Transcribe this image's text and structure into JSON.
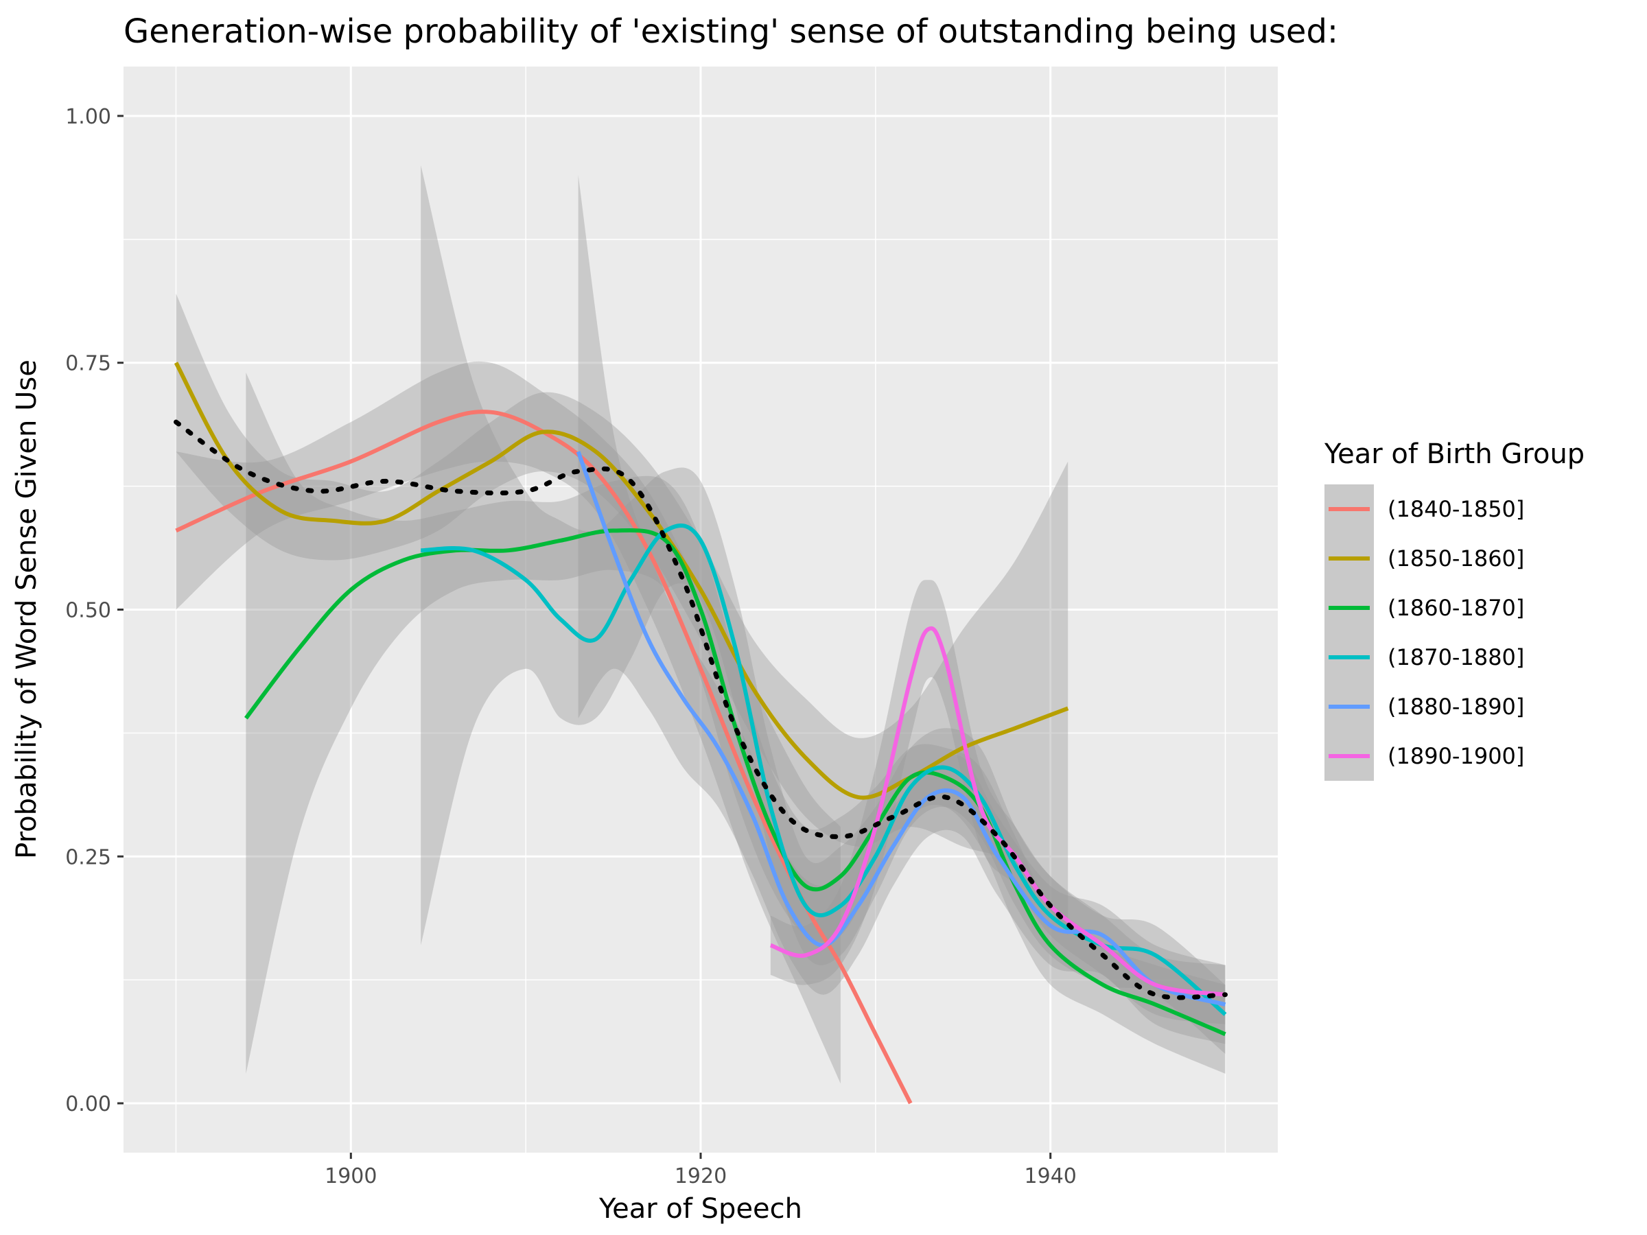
{
  "chart_data": {
    "type": "line",
    "title": "Generation-wise probability of 'existing' sense of outstanding being used:",
    "xlabel": "Year of Speech",
    "ylabel": "Probability of Word Sense Given Use",
    "xlim": [
      1887,
      1953
    ],
    "ylim": [
      -0.05,
      1.05
    ],
    "x_ticks": [
      1900,
      1920,
      1940
    ],
    "y_ticks": [
      0.0,
      0.25,
      0.5,
      0.75,
      1.0
    ],
    "y_tick_labels": [
      "0.00",
      "0.25",
      "0.50",
      "0.75",
      "1.00"
    ],
    "grid": true,
    "legend": {
      "title": "Year of Birth Group",
      "position": "right"
    },
    "background_color": "#ebebeb",
    "series": [
      {
        "name": "(1840-1850]",
        "color": "#f8766d",
        "x": [
          1890,
          1895,
          1900,
          1905,
          1908,
          1911,
          1914,
          1917,
          1920,
          1923,
          1926,
          1928,
          1930,
          1932
        ],
        "y": [
          0.58,
          0.62,
          0.65,
          0.69,
          0.7,
          0.68,
          0.64,
          0.56,
          0.44,
          0.31,
          0.2,
          0.14,
          0.07,
          0.0
        ],
        "band_upper": [
          0.66,
          0.65,
          0.69,
          0.74,
          0.75,
          0.72,
          0.68,
          0.62,
          0.52,
          0.42,
          0.32,
          0.28
        ],
        "band_lower": [
          0.5,
          0.58,
          0.61,
          0.64,
          0.65,
          0.64,
          0.6,
          0.5,
          0.37,
          0.22,
          0.1,
          0.02
        ],
        "band_x": [
          1890,
          1895,
          1900,
          1905,
          1908,
          1911,
          1914,
          1917,
          1920,
          1923,
          1926,
          1928
        ]
      },
      {
        "name": "(1850-1860]",
        "color": "#b79f00",
        "x": [
          1890,
          1893,
          1896,
          1899,
          1902,
          1905,
          1908,
          1911,
          1914,
          1917,
          1920,
          1923,
          1926,
          1929,
          1932,
          1935,
          1938,
          1941
        ],
        "y": [
          0.75,
          0.65,
          0.6,
          0.59,
          0.59,
          0.62,
          0.65,
          0.68,
          0.66,
          0.6,
          0.52,
          0.42,
          0.35,
          0.31,
          0.33,
          0.36,
          0.38,
          0.4
        ],
        "band_upper": [
          0.82,
          0.7,
          0.64,
          0.63,
          0.62,
          0.65,
          0.69,
          0.72,
          0.7,
          0.65,
          0.57,
          0.47,
          0.41,
          0.37,
          0.4,
          0.48,
          0.55,
          0.65
        ],
        "band_lower": [
          0.66,
          0.6,
          0.56,
          0.55,
          0.56,
          0.58,
          0.62,
          0.64,
          0.62,
          0.56,
          0.47,
          0.37,
          0.29,
          0.26,
          0.28,
          0.26,
          0.24,
          0.17
        ]
      },
      {
        "name": "(1860-1870]",
        "color": "#00ba38",
        "x": [
          1894,
          1897,
          1900,
          1903,
          1906,
          1909,
          1912,
          1915,
          1918,
          1920,
          1922,
          1924,
          1926,
          1928,
          1930,
          1932,
          1934,
          1936,
          1938,
          1940,
          1943,
          1946,
          1950
        ],
        "y": [
          0.39,
          0.46,
          0.52,
          0.55,
          0.56,
          0.56,
          0.57,
          0.58,
          0.57,
          0.5,
          0.38,
          0.28,
          0.22,
          0.23,
          0.28,
          0.33,
          0.33,
          0.3,
          0.22,
          0.16,
          0.12,
          0.1,
          0.07
        ],
        "band_upper": [
          0.74,
          0.63,
          0.6,
          0.59,
          0.6,
          0.61,
          0.61,
          0.63,
          0.63,
          0.57,
          0.45,
          0.34,
          0.28,
          0.29,
          0.32,
          0.36,
          0.36,
          0.34,
          0.27,
          0.2,
          0.16,
          0.14,
          0.12
        ],
        "band_lower": [
          0.03,
          0.27,
          0.4,
          0.48,
          0.52,
          0.53,
          0.53,
          0.54,
          0.52,
          0.43,
          0.31,
          0.22,
          0.17,
          0.17,
          0.23,
          0.29,
          0.3,
          0.26,
          0.18,
          0.12,
          0.09,
          0.06,
          0.03
        ]
      },
      {
        "name": "(1870-1880]",
        "color": "#00bfc4",
        "x": [
          1904,
          1907,
          1910,
          1912,
          1914,
          1916,
          1918,
          1920,
          1922,
          1924,
          1926,
          1928,
          1930,
          1932,
          1934,
          1936,
          1938,
          1940,
          1943,
          1946,
          1950
        ],
        "y": [
          0.56,
          0.56,
          0.53,
          0.49,
          0.47,
          0.53,
          0.58,
          0.57,
          0.46,
          0.3,
          0.2,
          0.2,
          0.25,
          0.32,
          0.34,
          0.31,
          0.24,
          0.19,
          0.16,
          0.15,
          0.09
        ],
        "band_upper": [
          0.95,
          0.73,
          0.62,
          0.59,
          0.58,
          0.61,
          0.64,
          0.63,
          0.52,
          0.36,
          0.25,
          0.26,
          0.3,
          0.36,
          0.38,
          0.36,
          0.28,
          0.23,
          0.19,
          0.18,
          0.12
        ],
        "band_lower": [
          0.16,
          0.38,
          0.44,
          0.39,
          0.39,
          0.45,
          0.52,
          0.51,
          0.4,
          0.25,
          0.15,
          0.15,
          0.21,
          0.28,
          0.3,
          0.27,
          0.2,
          0.15,
          0.12,
          0.11,
          0.05
        ]
      },
      {
        "name": "(1880-1890]",
        "color": "#619cff",
        "x": [
          1913,
          1915,
          1917,
          1919,
          1921,
          1923,
          1925,
          1927,
          1929,
          1931,
          1933,
          1935,
          1937,
          1940,
          1943,
          1946,
          1950
        ],
        "y": [
          0.66,
          0.56,
          0.47,
          0.41,
          0.36,
          0.29,
          0.2,
          0.16,
          0.2,
          0.26,
          0.31,
          0.31,
          0.25,
          0.18,
          0.17,
          0.12,
          0.1
        ],
        "band_upper": [
          0.94,
          0.68,
          0.56,
          0.48,
          0.42,
          0.35,
          0.25,
          0.22,
          0.25,
          0.3,
          0.34,
          0.35,
          0.29,
          0.22,
          0.2,
          0.16,
          0.14
        ],
        "band_lower": [
          0.39,
          0.44,
          0.4,
          0.34,
          0.3,
          0.23,
          0.15,
          0.11,
          0.15,
          0.22,
          0.27,
          0.27,
          0.21,
          0.14,
          0.13,
          0.08,
          0.06
        ]
      },
      {
        "name": "(1890-1900]",
        "color": "#f564e3",
        "x": [
          1924,
          1926,
          1928,
          1930,
          1932,
          1933,
          1934,
          1936,
          1938,
          1940,
          1943,
          1946,
          1950
        ],
        "y": [
          0.16,
          0.15,
          0.18,
          0.28,
          0.43,
          0.48,
          0.45,
          0.3,
          0.25,
          0.2,
          0.16,
          0.12,
          0.11
        ],
        "band_upper": [
          0.19,
          0.18,
          0.22,
          0.34,
          0.5,
          0.53,
          0.5,
          0.34,
          0.28,
          0.23,
          0.19,
          0.15,
          0.14
        ],
        "band_lower": [
          0.13,
          0.12,
          0.14,
          0.22,
          0.37,
          0.43,
          0.4,
          0.26,
          0.22,
          0.17,
          0.13,
          0.09,
          0.08
        ]
      },
      {
        "name": "",
        "color": "#000000",
        "dotted": true,
        "x": [
          1890,
          1894,
          1898,
          1902,
          1906,
          1910,
          1913,
          1916,
          1919,
          1922,
          1925,
          1928,
          1931,
          1934,
          1937,
          1940,
          1943,
          1946,
          1950
        ],
        "y": [
          0.69,
          0.64,
          0.62,
          0.63,
          0.62,
          0.62,
          0.64,
          0.63,
          0.53,
          0.38,
          0.29,
          0.27,
          0.29,
          0.31,
          0.27,
          0.2,
          0.15,
          0.11,
          0.11
        ]
      }
    ]
  }
}
